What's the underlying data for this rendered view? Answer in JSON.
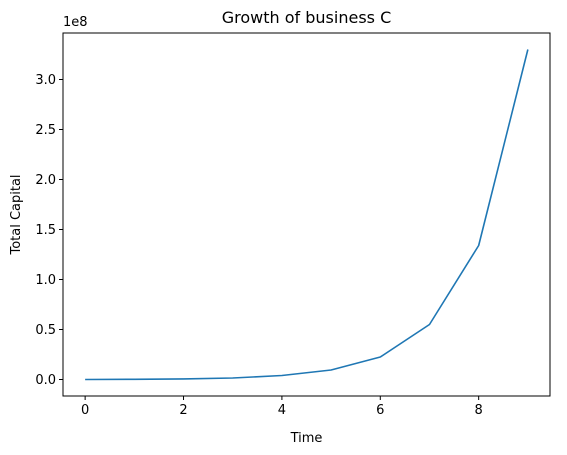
{
  "chart_data": {
    "type": "line",
    "title": "Growth of business C",
    "xlabel": "Time",
    "ylabel": "Total Capital",
    "y_offset_label": "1e8",
    "xlim": [
      -0.45,
      9.45
    ],
    "ylim": [
      -16500000,
      346500000
    ],
    "x_ticks": [
      0,
      2,
      4,
      6,
      8
    ],
    "x_tick_labels": [
      "0",
      "2",
      "4",
      "6",
      "8"
    ],
    "y_ticks": [
      0,
      50000000,
      100000000,
      150000000,
      200000000,
      250000000,
      300000000
    ],
    "y_tick_labels": [
      "0.0",
      "0.5",
      "1.0",
      "1.5",
      "2.0",
      "2.5",
      "3.0"
    ],
    "grid": false,
    "series": [
      {
        "color": "#1f77b4",
        "x": [
          0,
          1,
          2,
          3,
          4,
          5,
          6,
          7,
          8,
          9
        ],
        "y": [
          0,
          200000,
          600000,
          1500000,
          4000000,
          9500000,
          22500000,
          55000000,
          134000000,
          330000000
        ]
      }
    ]
  }
}
